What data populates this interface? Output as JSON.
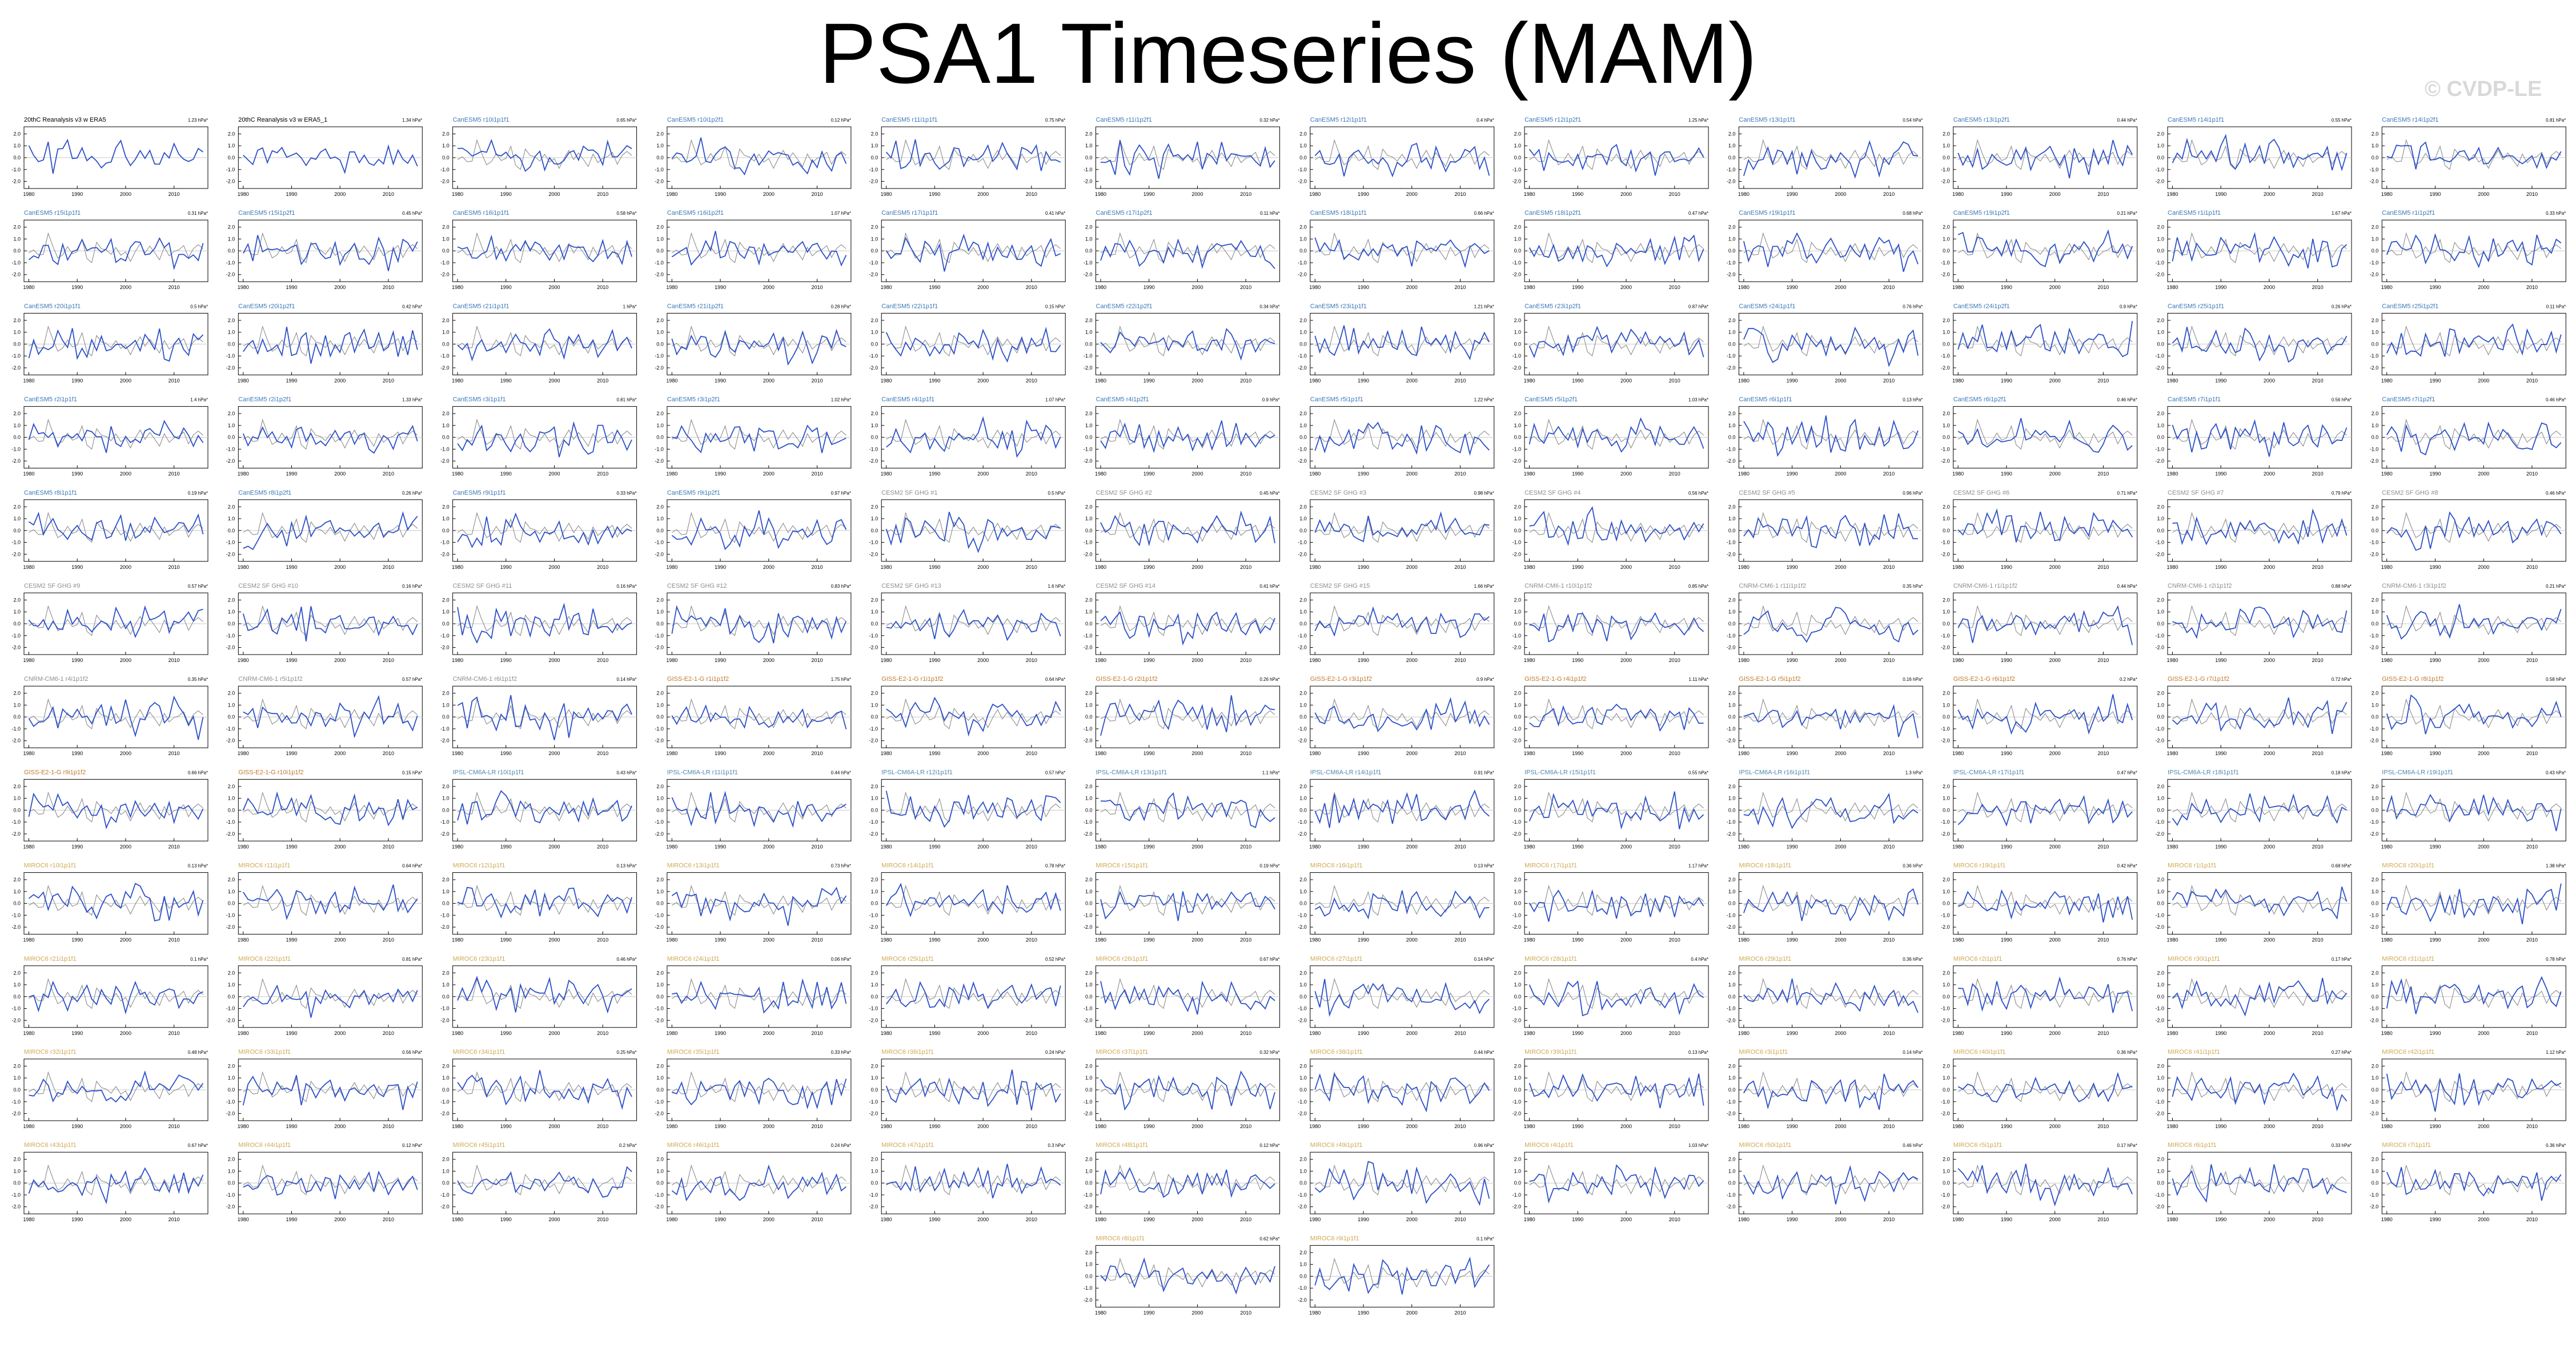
{
  "figure": {
    "title": "PSA1 Timeseries (MAM)",
    "watermark": "© CVDP-LE"
  },
  "chart_data": {
    "type": "line",
    "layout": "small-multiples",
    "x_ticks": [
      "1980",
      "1990",
      "2000",
      "2010"
    ],
    "y_ticks": [
      "2.0",
      "1.0",
      "0.0",
      "-1.0",
      "-2.0"
    ],
    "xlim": [
      1979,
      2017
    ],
    "ylim": [
      -2.6,
      2.6
    ],
    "colors": {
      "observed": "#000000",
      "model": "#2c50c8",
      "reference": "#8c8c8c",
      "label_cesm": "#3a78b8",
      "label_cesm2": "#8e8e8e",
      "label_cnrm": "#8e8e8e",
      "label_giss": "#c0782c",
      "label_ipsl": "#4c88b0",
      "label_miroc": "#d0a850"
    },
    "panels": [
      {
        "title": "20thC Reanalysis v3 w ERA5",
        "trend": "1.23 hPa*",
        "group": "obs",
        "seed": 1
      },
      {
        "title": "20thC Reanalysis v3 w ERA5_1",
        "trend": "1.34 hPa*",
        "group": "obs",
        "seed": 2
      },
      {
        "title": "CanESM5 r10i1p1f1",
        "trend": "0.65 hPa*",
        "group": "cesm",
        "seed": 3
      },
      {
        "title": "CanESM5 r10i1p2f1",
        "trend": "0.12 hPa*",
        "group": "cesm",
        "seed": 4
      },
      {
        "title": "CanESM5 r11i1p1f1",
        "trend": "0.75 hPa*",
        "group": "cesm",
        "seed": 5
      },
      {
        "title": "CanESM5 r11i1p2f1",
        "trend": "0.32 hPa*",
        "group": "cesm",
        "seed": 6
      },
      {
        "title": "CanESM5 r12i1p1f1",
        "trend": "0.4 hPa*",
        "group": "cesm",
        "seed": 7
      },
      {
        "title": "CanESM5 r12i1p2f1",
        "trend": "1.25 hPa*",
        "group": "cesm",
        "seed": 8
      },
      {
        "title": "CanESM5 r13i1p1f1",
        "trend": "0.54 hPa*",
        "group": "cesm",
        "seed": 9
      },
      {
        "title": "CanESM5 r13i1p2f1",
        "trend": "0.44 hPa*",
        "group": "cesm",
        "seed": 10
      },
      {
        "title": "CanESM5 r14i1p1f1",
        "trend": "0.55 hPa*",
        "group": "cesm",
        "seed": 11
      },
      {
        "title": "CanESM5 r14i1p2f1",
        "trend": "0.81 hPa*",
        "group": "cesm",
        "seed": 12
      },
      {
        "title": "CanESM5 r15i1p1f1",
        "trend": "0.31 hPa*",
        "group": "cesm",
        "seed": 13
      },
      {
        "title": "CanESM5 r15i1p2f1",
        "trend": "0.45 hPa*",
        "group": "cesm",
        "seed": 14
      },
      {
        "title": "CanESM5 r16i1p1f1",
        "trend": "0.58 hPa*",
        "group": "cesm",
        "seed": 15
      },
      {
        "title": "CanESM5 r16i1p2f1",
        "trend": "1.07 hPa*",
        "group": "cesm",
        "seed": 16
      },
      {
        "title": "CanESM5 r17i1p1f1",
        "trend": "0.41 hPa*",
        "group": "cesm",
        "seed": 17
      },
      {
        "title": "CanESM5 r17i1p2f1",
        "trend": "0.11 hPa*",
        "group": "cesm",
        "seed": 18
      },
      {
        "title": "CanESM5 r18i1p1f1",
        "trend": "0.66 hPa*",
        "group": "cesm",
        "seed": 19
      },
      {
        "title": "CanESM5 r18i1p2f1",
        "trend": "0.47 hPa*",
        "group": "cesm",
        "seed": 20
      },
      {
        "title": "CanESM5 r19i1p1f1",
        "trend": "0.68 hPa*",
        "group": "cesm",
        "seed": 21
      },
      {
        "title": "CanESM5 r19i1p2f1",
        "trend": "0.21 hPa*",
        "group": "cesm",
        "seed": 22
      },
      {
        "title": "CanESM5 r1i1p1f1",
        "trend": "1.67 hPa*",
        "group": "cesm",
        "seed": 23
      },
      {
        "title": "CanESM5 r1i1p2f1",
        "trend": "0.33 hPa*",
        "group": "cesm",
        "seed": 24
      },
      {
        "title": "CanESM5 r20i1p1f1",
        "trend": "0.5 hPa*",
        "group": "cesm",
        "seed": 25
      },
      {
        "title": "CanESM5 r20i1p2f1",
        "trend": "0.42 hPa*",
        "group": "cesm",
        "seed": 26
      },
      {
        "title": "CanESM5 r21i1p1f1",
        "trend": "1 hPa*",
        "group": "cesm",
        "seed": 27
      },
      {
        "title": "CanESM5 r21i1p2f1",
        "trend": "0.28 hPa*",
        "group": "cesm",
        "seed": 28
      },
      {
        "title": "CanESM5 r22i1p1f1",
        "trend": "0.15 hPa*",
        "group": "cesm",
        "seed": 29
      },
      {
        "title": "CanESM5 r22i1p2f1",
        "trend": "0.34 hPa*",
        "group": "cesm",
        "seed": 30
      },
      {
        "title": "CanESM5 r23i1p1f1",
        "trend": "1.21 hPa*",
        "group": "cesm",
        "seed": 31
      },
      {
        "title": "CanESM5 r23i1p2f1",
        "trend": "0.87 hPa*",
        "group": "cesm",
        "seed": 32
      },
      {
        "title": "CanESM5 r24i1p1f1",
        "trend": "0.76 hPa*",
        "group": "cesm",
        "seed": 33
      },
      {
        "title": "CanESM5 r24i1p2f1",
        "trend": "0.9 hPa*",
        "group": "cesm",
        "seed": 34
      },
      {
        "title": "CanESM5 r25i1p1f1",
        "trend": "0.26 hPa*",
        "group": "cesm",
        "seed": 35
      },
      {
        "title": "CanESM5 r25i1p2f1",
        "trend": "0.11 hPa*",
        "group": "cesm",
        "seed": 36
      },
      {
        "title": "CanESM5 r2i1p1f1",
        "trend": "1.4 hPa*",
        "group": "cesm",
        "seed": 37
      },
      {
        "title": "CanESM5 r2i1p2f1",
        "trend": "1.33 hPa*",
        "group": "cesm",
        "seed": 38
      },
      {
        "title": "CanESM5 r3i1p1f1",
        "trend": "0.81 hPa*",
        "group": "cesm",
        "seed": 39
      },
      {
        "title": "CanESM5 r3i1p2f1",
        "trend": "1.02 hPa*",
        "group": "cesm",
        "seed": 40
      },
      {
        "title": "CanESM5 r4i1p1f1",
        "trend": "1.07 hPa*",
        "group": "cesm",
        "seed": 41
      },
      {
        "title": "CanESM5 r4i1p2f1",
        "trend": "0.9 hPa*",
        "group": "cesm",
        "seed": 42
      },
      {
        "title": "CanESM5 r5i1p1f1",
        "trend": "1.22 hPa*",
        "group": "cesm",
        "seed": 43
      },
      {
        "title": "CanESM5 r5i1p2f1",
        "trend": "1.03 hPa*",
        "group": "cesm",
        "seed": 44
      },
      {
        "title": "CanESM5 r6i1p1f1",
        "trend": "0.13 hPa*",
        "group": "cesm",
        "seed": 45
      },
      {
        "title": "CanESM5 r6i1p2f1",
        "trend": "0.46 hPa*",
        "group": "cesm",
        "seed": 46
      },
      {
        "title": "CanESM5 r7i1p1f1",
        "trend": "0.56 hPa*",
        "group": "cesm",
        "seed": 47
      },
      {
        "title": "CanESM5 r7i1p2f1",
        "trend": "0.46 hPa*",
        "group": "cesm",
        "seed": 48
      },
      {
        "title": "CanESM5 r8i1p1f1",
        "trend": "0.19 hPa*",
        "group": "cesm",
        "seed": 49
      },
      {
        "title": "CanESM5 r8i1p2f1",
        "trend": "0.26 hPa*",
        "group": "cesm",
        "seed": 50
      },
      {
        "title": "CanESM5 r9i1p1f1",
        "trend": "0.33 hPa*",
        "group": "cesm",
        "seed": 51
      },
      {
        "title": "CanESM5 r9i1p2f1",
        "trend": "0.97 hPa*",
        "group": "cesm",
        "seed": 52
      },
      {
        "title": "CESM2 SF GHG #1",
        "trend": "0.5 hPa*",
        "group": "cesm2",
        "seed": 53
      },
      {
        "title": "CESM2 SF GHG #2",
        "trend": "0.45 hPa*",
        "group": "cesm2",
        "seed": 54
      },
      {
        "title": "CESM2 SF GHG #3",
        "trend": "0.98 hPa*",
        "group": "cesm2",
        "seed": 55
      },
      {
        "title": "CESM2 SF GHG #4",
        "trend": "0.56 hPa*",
        "group": "cesm2",
        "seed": 56
      },
      {
        "title": "CESM2 SF GHG #5",
        "trend": "0.96 hPa*",
        "group": "cesm2",
        "seed": 57
      },
      {
        "title": "CESM2 SF GHG #6",
        "trend": "0.71 hPa*",
        "group": "cesm2",
        "seed": 58
      },
      {
        "title": "CESM2 SF GHG #7",
        "trend": "0.79 hPa*",
        "group": "cesm2",
        "seed": 59
      },
      {
        "title": "CESM2 SF GHG #8",
        "trend": "0.46 hPa*",
        "group": "cesm2",
        "seed": 60
      },
      {
        "title": "CESM2 SF GHG #9",
        "trend": "0.57 hPa*",
        "group": "cesm2",
        "seed": 61
      },
      {
        "title": "CESM2 SF GHG #10",
        "trend": "0.16 hPa*",
        "group": "cesm2",
        "seed": 62
      },
      {
        "title": "CESM2 SF GHG #11",
        "trend": "0.16 hPa*",
        "group": "cesm2",
        "seed": 63
      },
      {
        "title": "CESM2 SF GHG #12",
        "trend": "0.83 hPa*",
        "group": "cesm2",
        "seed": 64
      },
      {
        "title": "CESM2 SF GHG #13",
        "trend": "1.6 hPa*",
        "group": "cesm2",
        "seed": 65
      },
      {
        "title": "CESM2 SF GHG #14",
        "trend": "0.41 hPa*",
        "group": "cesm2",
        "seed": 66
      },
      {
        "title": "CESM2 SF GHG #15",
        "trend": "1.66 hPa*",
        "group": "cesm2",
        "seed": 67
      },
      {
        "title": "CNRM-CM6-1 r10i1p1f2",
        "trend": "0.85 hPa*",
        "group": "cnrm",
        "seed": 68
      },
      {
        "title": "CNRM-CM6-1 r11i1p1f2",
        "trend": "0.35 hPa*",
        "group": "cnrm",
        "seed": 69
      },
      {
        "title": "CNRM-CM6-1 r1i1p1f2",
        "trend": "0.44 hPa*",
        "group": "cnrm",
        "seed": 70
      },
      {
        "title": "CNRM-CM6-1 r2i1p1f2",
        "trend": "0.88 hPa*",
        "group": "cnrm",
        "seed": 71
      },
      {
        "title": "CNRM-CM6-1 r3i1p1f2",
        "trend": "0.21 hPa*",
        "group": "cnrm",
        "seed": 72
      },
      {
        "title": "CNRM-CM6-1 r4i1p1f2",
        "trend": "0.35 hPa*",
        "group": "cnrm",
        "seed": 73
      },
      {
        "title": "CNRM-CM6-1 r5i1p1f2",
        "trend": "0.57 hPa*",
        "group": "cnrm",
        "seed": 74
      },
      {
        "title": "CNRM-CM6-1 r6i1p1f2",
        "trend": "0.14 hPa*",
        "group": "cnrm",
        "seed": 75
      },
      {
        "title": "GISS-E2-1-G r1i1p1f2",
        "trend": "1.75 hPa*",
        "group": "giss",
        "seed": 76
      },
      {
        "title": "GISS-E2-1-G r1i1p1f2",
        "trend": "0.64 hPa*",
        "group": "giss",
        "seed": 77
      },
      {
        "title": "GISS-E2-1-G r2i1p1f2",
        "trend": "0.26 hPa*",
        "group": "giss",
        "seed": 78
      },
      {
        "title": "GISS-E2-1-G r3i1p1f2",
        "trend": "0.9 hPa*",
        "group": "giss",
        "seed": 79
      },
      {
        "title": "GISS-E2-1-G r4i1p1f2",
        "trend": "1.11 hPa*",
        "group": "giss",
        "seed": 80
      },
      {
        "title": "GISS-E2-1-G r5i1p1f2",
        "trend": "0.16 hPa*",
        "group": "giss",
        "seed": 81
      },
      {
        "title": "GISS-E2-1-G r6i1p1f2",
        "trend": "0.2 hPa*",
        "group": "giss",
        "seed": 82
      },
      {
        "title": "GISS-E2-1-G r7i1p1f2",
        "trend": "0.72 hPa*",
        "group": "giss",
        "seed": 83
      },
      {
        "title": "GISS-E2-1-G r8i1p1f2",
        "trend": "0.58 hPa*",
        "group": "giss",
        "seed": 84
      },
      {
        "title": "GISS-E2-1-G r9i1p1f2",
        "trend": "0.66 hPa*",
        "group": "giss",
        "seed": 85
      },
      {
        "title": "GISS-E2-1-G r10i1p1f2",
        "trend": "0.15 hPa*",
        "group": "giss",
        "seed": 86
      },
      {
        "title": "IPSL-CM6A-LR r10i1p1f1",
        "trend": "0.43 hPa*",
        "group": "ipsl",
        "seed": 87
      },
      {
        "title": "IPSL-CM6A-LR r11i1p1f1",
        "trend": "0.44 hPa*",
        "group": "ipsl",
        "seed": 88
      },
      {
        "title": "IPSL-CM6A-LR r12i1p1f1",
        "trend": "0.57 hPa*",
        "group": "ipsl",
        "seed": 89
      },
      {
        "title": "IPSL-CM6A-LR r13i1p1f1",
        "trend": "1.1 hPa*",
        "group": "ipsl",
        "seed": 90
      },
      {
        "title": "IPSL-CM6A-LR r14i1p1f1",
        "trend": "0.91 hPa*",
        "group": "ipsl",
        "seed": 91
      },
      {
        "title": "IPSL-CM6A-LR r15i1p1f1",
        "trend": "0.55 hPa*",
        "group": "ipsl",
        "seed": 92
      },
      {
        "title": "IPSL-CM6A-LR r16i1p1f1",
        "trend": "1.3 hPa*",
        "group": "ipsl",
        "seed": 93
      },
      {
        "title": "IPSL-CM6A-LR r17i1p1f1",
        "trend": "0.47 hPa*",
        "group": "ipsl",
        "seed": 94
      },
      {
        "title": "IPSL-CM6A-LR r18i1p1f1",
        "trend": "0.18 hPa*",
        "group": "ipsl",
        "seed": 95
      },
      {
        "title": "IPSL-CM6A-LR r19i1p1f1",
        "trend": "0.43 hPa*",
        "group": "ipsl",
        "seed": 96
      },
      {
        "title": "MIROC6 r10i1p1f1",
        "trend": "0.13 hPa*",
        "group": "miroc",
        "seed": 97
      },
      {
        "title": "MIROC6 r11i1p1f1",
        "trend": "0.64 hPa*",
        "group": "miroc",
        "seed": 98
      },
      {
        "title": "MIROC6 r12i1p1f1",
        "trend": "0.13 hPa*",
        "group": "miroc",
        "seed": 99
      },
      {
        "title": "MIROC6 r13i1p1f1",
        "trend": "0.73 hPa*",
        "group": "miroc",
        "seed": 100
      },
      {
        "title": "MIROC6 r14i1p1f1",
        "trend": "0.78 hPa*",
        "group": "miroc",
        "seed": 101
      },
      {
        "title": "MIROC6 r15i1p1f1",
        "trend": "0.19 hPa*",
        "group": "miroc",
        "seed": 102
      },
      {
        "title": "MIROC6 r16i1p1f1",
        "trend": "0.13 hPa*",
        "group": "miroc",
        "seed": 103
      },
      {
        "title": "MIROC6 r17i1p1f1",
        "trend": "1.17 hPa*",
        "group": "miroc",
        "seed": 104
      },
      {
        "title": "MIROC6 r18i1p1f1",
        "trend": "0.36 hPa*",
        "group": "miroc",
        "seed": 105
      },
      {
        "title": "MIROC6 r19i1p1f1",
        "trend": "0.42 hPa*",
        "group": "miroc",
        "seed": 106
      },
      {
        "title": "MIROC6 r1i1p1f1",
        "trend": "0.68 hPa*",
        "group": "miroc",
        "seed": 107
      },
      {
        "title": "MIROC6 r20i1p1f1",
        "trend": "1.38 hPa*",
        "group": "miroc",
        "seed": 108
      },
      {
        "title": "MIROC6 r21i1p1f1",
        "trend": "0.1 hPa*",
        "group": "miroc",
        "seed": 109
      },
      {
        "title": "MIROC6 r22i1p1f1",
        "trend": "0.81 hPa*",
        "group": "miroc",
        "seed": 110
      },
      {
        "title": "MIROC6 r23i1p1f1",
        "trend": "0.46 hPa*",
        "group": "miroc",
        "seed": 111
      },
      {
        "title": "MIROC6 r24i1p1f1",
        "trend": "0.06 hPa*",
        "group": "miroc",
        "seed": 112
      },
      {
        "title": "MIROC6 r25i1p1f1",
        "trend": "0.52 hPa*",
        "group": "miroc",
        "seed": 113
      },
      {
        "title": "MIROC6 r26i1p1f1",
        "trend": "0.67 hPa*",
        "group": "miroc",
        "seed": 114
      },
      {
        "title": "MIROC6 r27i1p1f1",
        "trend": "0.14 hPa*",
        "group": "miroc",
        "seed": 115
      },
      {
        "title": "MIROC6 r28i1p1f1",
        "trend": "0.4 hPa*",
        "group": "miroc",
        "seed": 116
      },
      {
        "title": "MIROC6 r29i1p1f1",
        "trend": "0.36 hPa*",
        "group": "miroc",
        "seed": 117
      },
      {
        "title": "MIROC6 r2i1p1f1",
        "trend": "0.76 hPa*",
        "group": "miroc",
        "seed": 118
      },
      {
        "title": "MIROC6 r30i1p1f1",
        "trend": "0.17 hPa*",
        "group": "miroc",
        "seed": 119
      },
      {
        "title": "MIROC6 r31i1p1f1",
        "trend": "0.78 hPa*",
        "group": "miroc",
        "seed": 120
      },
      {
        "title": "MIROC6 r32i1p1f1",
        "trend": "0.48 hPa*",
        "group": "miroc",
        "seed": 121
      },
      {
        "title": "MIROC6 r33i1p1f1",
        "trend": "0.56 hPa*",
        "group": "miroc",
        "seed": 122
      },
      {
        "title": "MIROC6 r34i1p1f1",
        "trend": "0.25 hPa*",
        "group": "miroc",
        "seed": 123
      },
      {
        "title": "MIROC6 r35i1p1f1",
        "trend": "0.33 hPa*",
        "group": "miroc",
        "seed": 124
      },
      {
        "title": "MIROC6 r36i1p1f1",
        "trend": "0.24 hPa*",
        "group": "miroc",
        "seed": 125
      },
      {
        "title": "MIROC6 r37i1p1f1",
        "trend": "0.32 hPa*",
        "group": "miroc",
        "seed": 126
      },
      {
        "title": "MIROC6 r38i1p1f1",
        "trend": "0.44 hPa*",
        "group": "miroc",
        "seed": 127
      },
      {
        "title": "MIROC6 r39i1p1f1",
        "trend": "0.13 hPa*",
        "group": "miroc",
        "seed": 128
      },
      {
        "title": "MIROC6 r3i1p1f1",
        "trend": "0.14 hPa*",
        "group": "miroc",
        "seed": 129
      },
      {
        "title": "MIROC6 r40i1p1f1",
        "trend": "0.36 hPa*",
        "group": "miroc",
        "seed": 130
      },
      {
        "title": "MIROC6 r41i1p1f1",
        "trend": "0.27 hPa*",
        "group": "miroc",
        "seed": 131
      },
      {
        "title": "MIROC6 r42i1p1f1",
        "trend": "1.12 hPa*",
        "group": "miroc",
        "seed": 132
      },
      {
        "title": "MIROC6 r43i1p1f1",
        "trend": "0.67 hPa*",
        "group": "miroc",
        "seed": 133
      },
      {
        "title": "MIROC6 r44i1p1f1",
        "trend": "0.12 hPa*",
        "group": "miroc",
        "seed": 134
      },
      {
        "title": "MIROC6 r45i1p1f1",
        "trend": "0.2 hPa*",
        "group": "miroc",
        "seed": 135
      },
      {
        "title": "MIROC6 r46i1p1f1",
        "trend": "0.24 hPa*",
        "group": "miroc",
        "seed": 136
      },
      {
        "title": "MIROC6 r47i1p1f1",
        "trend": "0.3 hPa*",
        "group": "miroc",
        "seed": 137
      },
      {
        "title": "MIROC6 r48i1p1f1",
        "trend": "0.12 hPa*",
        "group": "miroc",
        "seed": 138
      },
      {
        "title": "MIROC6 r49i1p1f1",
        "trend": "0.96 hPa*",
        "group": "miroc",
        "seed": 139
      },
      {
        "title": "MIROC6 r4i1p1f1",
        "trend": "1.03 hPa*",
        "group": "miroc",
        "seed": 140
      },
      {
        "title": "MIROC6 r50i1p1f1",
        "trend": "0.46 hPa*",
        "group": "miroc",
        "seed": 141
      },
      {
        "title": "MIROC6 r5i1p1f1",
        "trend": "0.17 hPa*",
        "group": "miroc",
        "seed": 142
      },
      {
        "title": "MIROC6 r6i1p1f1",
        "trend": "0.33 hPa*",
        "group": "miroc",
        "seed": 143
      },
      {
        "title": "MIROC6 r7i1p1f1",
        "trend": "0.36 hPa*",
        "group": "miroc",
        "seed": 144
      },
      {
        "title": "MIROC6 r8i1p1f1",
        "trend": "0.62 hPa*",
        "group": "miroc",
        "seed": 145
      },
      {
        "title": "MIROC6 r9i1p1f1",
        "trend": "0.1 hPa*",
        "group": "miroc",
        "seed": 146
      }
    ]
  }
}
